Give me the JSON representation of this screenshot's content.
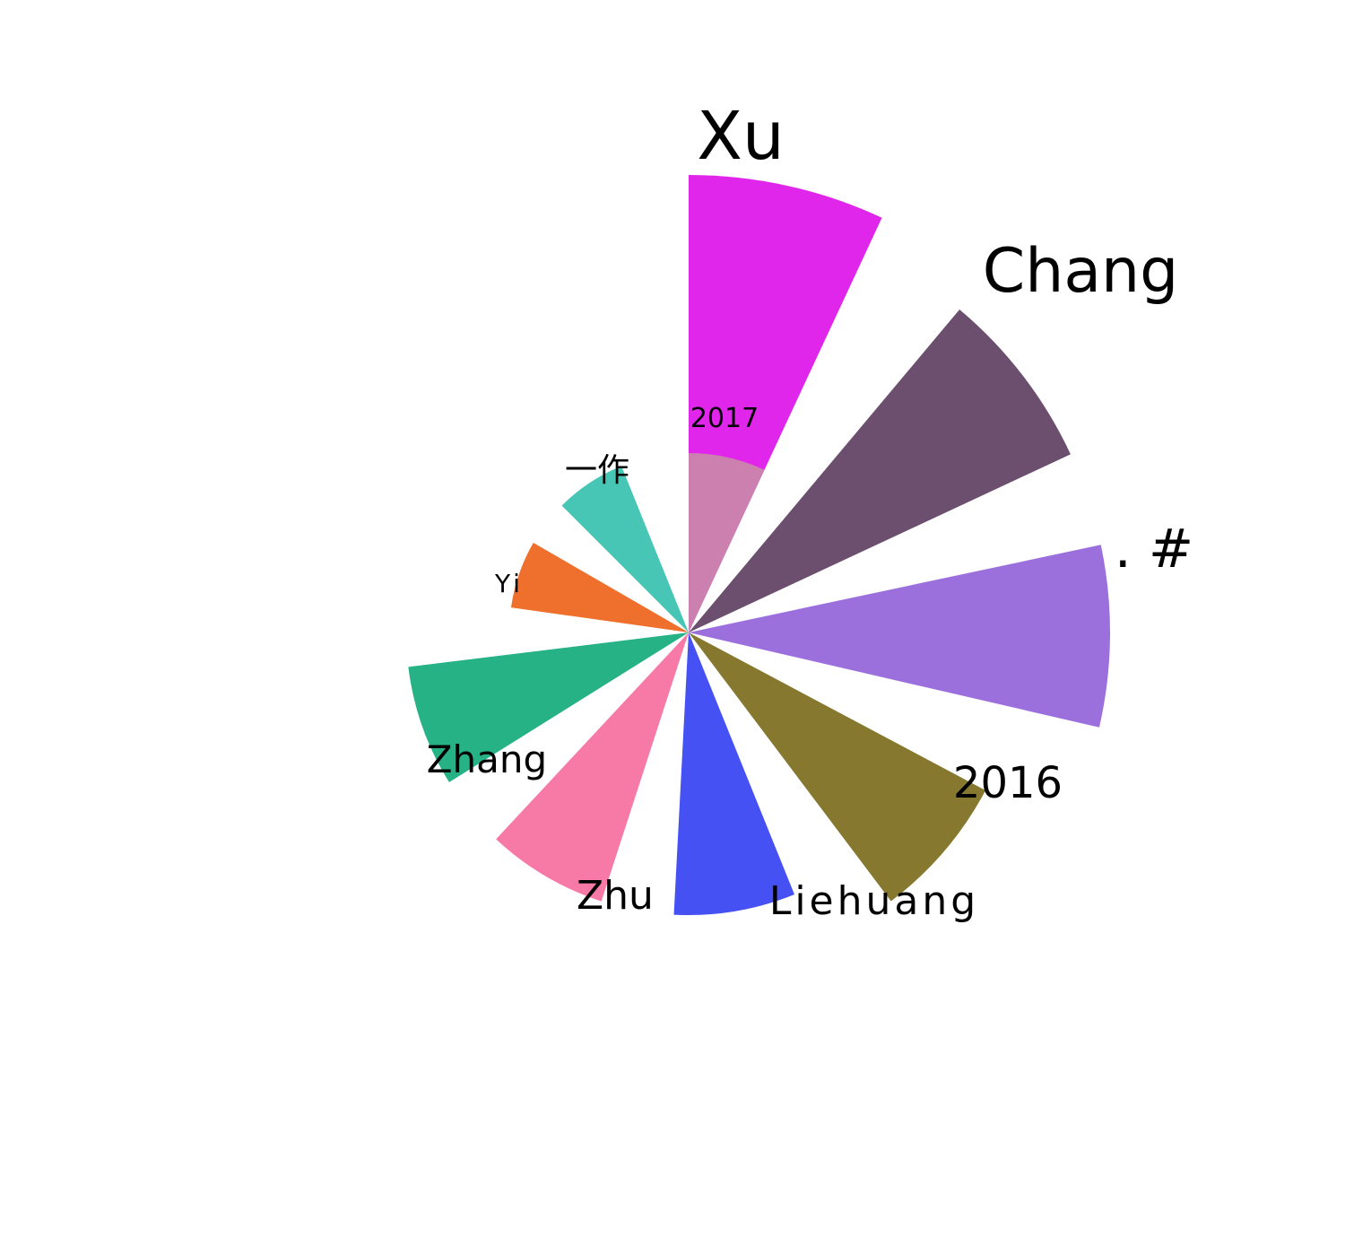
{
  "chart_data": {
    "type": "pie",
    "variant": "rose",
    "title": "",
    "categories": [
      "2017",
      "Xu",
      "Chang",
      ". #",
      "2016",
      "Liehuang",
      "Zhu",
      "Zhang",
      "Yi",
      "一作"
    ],
    "values": [
      200,
      510,
      470,
      470,
      375,
      315,
      315,
      315,
      200,
      200
    ],
    "colors": [
      "#cb80b0",
      "#e026ea",
      "#6c4f6e",
      "#9b6fdc",
      "#86782e",
      "#4651f4",
      "#f679a6",
      "#27b286",
      "#ef6f2c",
      "#47c6b5"
    ],
    "legend": "none",
    "grid": false
  }
}
